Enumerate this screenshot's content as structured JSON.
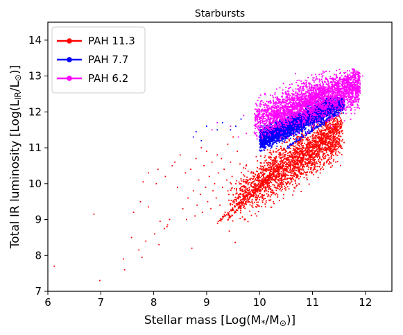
{
  "chart_data": {
    "type": "scatter",
    "title": "Starbursts",
    "xlabel_main": "Stellar mass [Log(M",
    "xlabel_sub": "*",
    "xlabel_mid": "/M",
    "xlabel_sun": "⊙",
    "xlabel_end": ")]",
    "ylabel_main": "Total IR luminosity [Log(L",
    "ylabel_sub": "IR",
    "ylabel_mid": "/L",
    "ylabel_sun": "⊙",
    "ylabel_end": ")]",
    "xlim": [
      6,
      12.5
    ],
    "ylim": [
      7,
      14.5
    ],
    "xticks": [
      "6",
      "7",
      "8",
      "9",
      "10",
      "11",
      "12"
    ],
    "yticks": [
      "7",
      "8",
      "9",
      "10",
      "11",
      "12",
      "13",
      "14"
    ],
    "legend_position": "upper-left",
    "series": [
      {
        "name": "PAH 11.3",
        "color": "#ff0000",
        "outliers": [
          [
            6.12,
            7.7
          ],
          [
            6.98,
            7.3
          ],
          [
            6.87,
            9.15
          ],
          [
            7.43,
            7.9
          ],
          [
            7.45,
            7.6
          ],
          [
            7.58,
            8.5
          ],
          [
            7.62,
            9.2
          ],
          [
            7.72,
            8.15
          ],
          [
            7.75,
            9.5
          ],
          [
            7.78,
            7.95
          ],
          [
            7.8,
            10.05
          ],
          [
            7.85,
            8.4
          ],
          [
            7.9,
            9.35
          ],
          [
            7.9,
            10.3
          ],
          [
            8.02,
            8.6
          ],
          [
            8.05,
            10.0
          ],
          [
            8.08,
            10.4
          ],
          [
            8.1,
            8.3
          ],
          [
            8.12,
            8.95
          ],
          [
            8.2,
            8.75
          ],
          [
            8.22,
            10.2
          ],
          [
            8.25,
            8.8
          ],
          [
            8.26,
            8.85
          ],
          [
            8.3,
            9.0
          ],
          [
            8.35,
            10.5
          ],
          [
            8.4,
            10.6
          ],
          [
            8.45,
            9.9
          ],
          [
            8.5,
            10.8
          ],
          [
            8.55,
            9.3
          ],
          [
            8.6,
            10.3
          ],
          [
            8.62,
            9.0
          ],
          [
            8.65,
            9.6
          ],
          [
            8.7,
            10.4
          ],
          [
            8.72,
            8.2
          ],
          [
            8.75,
            9.8
          ],
          [
            8.78,
            9.1
          ],
          [
            8.8,
            10.7
          ],
          [
            8.82,
            9.4
          ],
          [
            8.85,
            10.1
          ],
          [
            8.88,
            9.7
          ],
          [
            8.9,
            11.0
          ],
          [
            8.92,
            9.2
          ],
          [
            8.95,
            10.5
          ],
          [
            8.98,
            9.9
          ],
          [
            9.0,
            10.9
          ],
          [
            9.02,
            9.5
          ],
          [
            9.05,
            10.2
          ],
          [
            9.08,
            9.3
          ],
          [
            9.1,
            10.6
          ],
          [
            9.12,
            9.8
          ],
          [
            9.15,
            10.0
          ],
          [
            9.18,
            9.6
          ],
          [
            9.2,
            10.8
          ],
          [
            9.22,
            10.3
          ],
          [
            9.25,
            9.4
          ],
          [
            9.28,
            10.7
          ],
          [
            9.3,
            9.9
          ],
          [
            9.33,
            10.4
          ],
          [
            9.35,
            9.2
          ],
          [
            9.38,
            10.1
          ],
          [
            9.4,
            11.1
          ],
          [
            9.42,
            9.7
          ],
          [
            9.45,
            10.6
          ],
          [
            9.48,
            10.2
          ],
          [
            9.5,
            11.3
          ],
          [
            9.52,
            9.5
          ],
          [
            9.55,
            10.0
          ],
          [
            9.58,
            10.9
          ]
        ],
        "cloud": [
          9.3,
          12.15,
          0.14,
          3.5,
          0.75
        ],
        "line": [
          [
            9.2,
            8.9
          ],
          [
            10.2,
            10.25
          ]
        ],
        "line2": [
          [
            9.4,
            9.0
          ],
          [
            10.4,
            10.5
          ]
        ]
      },
      {
        "name": "PAH 7.7",
        "color": "#0000ff",
        "outliers": [
          [
            8.75,
            11.3
          ],
          [
            8.8,
            11.45
          ],
          [
            8.9,
            11.2
          ],
          [
            9.0,
            11.6
          ],
          [
            9.2,
            11.5
          ],
          [
            9.3,
            11.7
          ],
          [
            9.45,
            11.5
          ],
          [
            9.55,
            11.6
          ],
          [
            9.65,
            11.8
          ]
        ],
        "cloud": [
          9.8,
          11.6,
          0.5,
          5.5,
          0.55
        ],
        "line": [
          [
            10.4,
            11.2
          ],
          [
            11.6,
            12.3
          ]
        ],
        "line2": [
          [
            10.5,
            11.0
          ],
          [
            11.6,
            12.1
          ]
        ]
      },
      {
        "name": "PAH 6.2",
        "color": "#ff00ff",
        "outliers": [
          [
            9.1,
            11.5
          ],
          [
            9.2,
            11.7
          ],
          [
            9.45,
            11.6
          ],
          [
            9.6,
            11.3
          ],
          [
            9.7,
            11.9
          ],
          [
            9.75,
            11.4
          ],
          [
            11.75,
            13.2
          ],
          [
            11.8,
            13.1
          ],
          [
            11.95,
            13.0
          ]
        ],
        "cloud": [
          9.95,
          11.8,
          0.8,
          4.2,
          0.6
        ],
        "line": [
          [
            10.6,
            12.1
          ],
          [
            11.9,
            13.1
          ]
        ],
        "line2": [
          [
            10.3,
            11.8
          ],
          [
            11.5,
            12.8
          ]
        ]
      }
    ]
  }
}
